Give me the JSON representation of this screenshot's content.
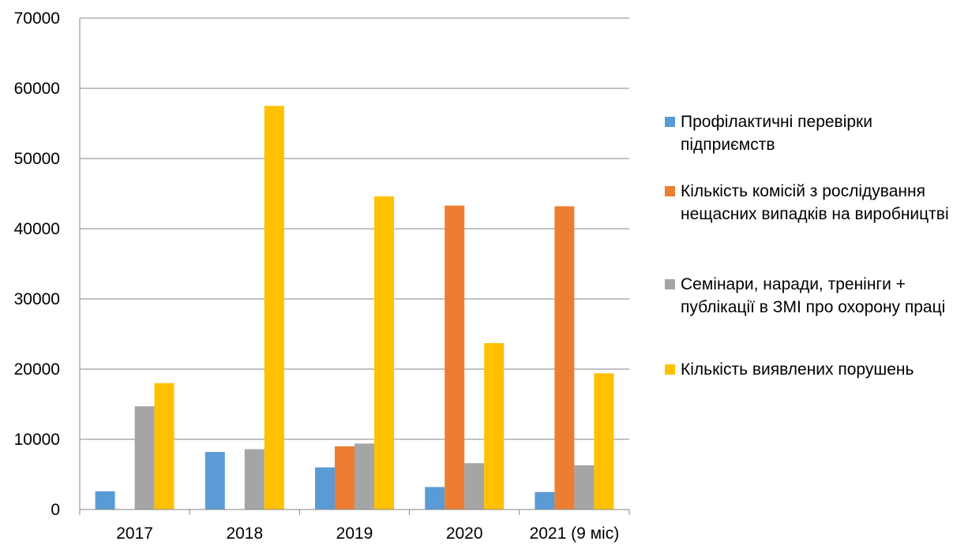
{
  "chart_data": {
    "type": "bar",
    "categories": [
      "2017",
      "2018",
      "2019",
      "2020",
      "2021 (9 міс)"
    ],
    "series": [
      {
        "name": "Профілактичні перевірки підприємств",
        "color": "#5B9BD5",
        "values": [
          2600,
          8200,
          6000,
          3200,
          2500
        ]
      },
      {
        "name": "Кількість комісій з рослідування нещасних випадків на виробництві",
        "color": "#ED7D31",
        "values": [
          0,
          0,
          9000,
          43300,
          43200
        ]
      },
      {
        "name": "Семінари, наради, тренінги + публікації в ЗМІ про охорону праці",
        "color": "#A5A5A5",
        "values": [
          14700,
          8600,
          9400,
          6600,
          6300
        ]
      },
      {
        "name": "Кількість виявлених порушень",
        "color": "#FFC000",
        "values": [
          18000,
          57500,
          44600,
          23700,
          19400
        ]
      }
    ],
    "y_ticks": [
      "0",
      "10000",
      "20000",
      "30000",
      "40000",
      "50000",
      "60000",
      "70000"
    ],
    "ylim": [
      0,
      70000
    ],
    "grid": true,
    "legend_position": "right",
    "gridline_color": "#868686",
    "axis_color": "#868686"
  }
}
